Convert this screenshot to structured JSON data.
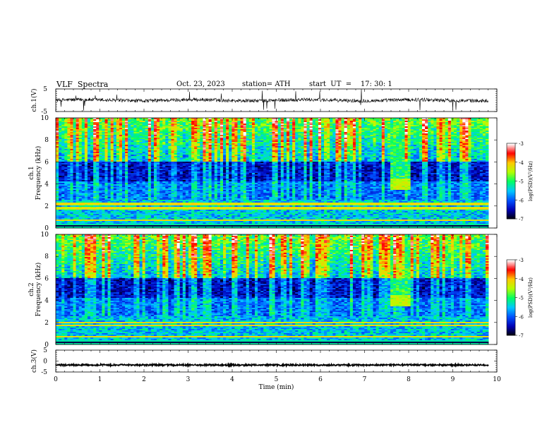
{
  "header": {
    "title": "VLF  Spectra",
    "date": "Oct. 23, 2023",
    "station": "station= ATH",
    "start": "start  UT  =    17: 30: 1"
  },
  "chart_data": [
    {
      "type": "line",
      "name": "ch1-waveform",
      "ylabel": "ch.1(V)",
      "ylim": [
        -5,
        5
      ],
      "yticks": [
        "5",
        "-5"
      ],
      "xlim": [
        0,
        10
      ],
      "mean_value": 0,
      "line_color": "#000000"
    },
    {
      "type": "heatmap",
      "name": "ch1-spectrogram",
      "ylabel": "ch.1\nFrequency  (kHz)",
      "ylim": [
        0,
        10
      ],
      "yticks": [
        "0",
        "2",
        "4",
        "6",
        "8",
        "10"
      ],
      "xlim": [
        0,
        10
      ],
      "bands": [
        {
          "freq_khz": 2.2,
          "label": "narrowband"
        },
        {
          "freq_khz": 1.8,
          "label": "narrowband"
        },
        {
          "freq_khz": 0.7,
          "label": "narrowband"
        }
      ],
      "burst": {
        "t_start_min": 7.6,
        "t_end_min": 8.05,
        "f_low_khz": 3.5,
        "f_high_khz": 4.5
      },
      "colorbar": {
        "label": "log(PSD)(V²/Hz)",
        "ticks": [
          "-3",
          "-4",
          "-5",
          "-6",
          "-7"
        ],
        "range": [
          -7,
          -3
        ]
      }
    },
    {
      "type": "heatmap",
      "name": "ch2-spectrogram",
      "ylabel": "ch.2\nFrequency  (kHz)",
      "ylim": [
        0,
        10
      ],
      "yticks": [
        "0",
        "2",
        "4",
        "6",
        "8",
        "10"
      ],
      "xlim": [
        0,
        10
      ],
      "bands": [
        {
          "freq_khz": 2.0,
          "label": "narrowband"
        },
        {
          "freq_khz": 1.7,
          "label": "narrowband"
        },
        {
          "freq_khz": 0.7,
          "label": "narrowband"
        }
      ],
      "burst": {
        "t_start_min": 7.6,
        "t_end_min": 8.05,
        "f_low_khz": 3.5,
        "f_high_khz": 4.5
      },
      "colorbar": {
        "label": "log(PSD)(V²/Hz)",
        "ticks": [
          "-3",
          "-4",
          "-5",
          "-6",
          "-7"
        ],
        "range": [
          -7,
          -3
        ]
      }
    },
    {
      "type": "line",
      "name": "ch3-waveform",
      "ylabel": "ch.3(V)",
      "ylim": [
        -5,
        5
      ],
      "yticks": [
        "5",
        "0",
        "-5"
      ],
      "xlim": [
        0,
        10
      ],
      "mean_value": -1.8,
      "xlabel": "Time  (min)",
      "xticks": [
        "0",
        "1",
        "2",
        "3",
        "4",
        "5",
        "6",
        "7",
        "8",
        "9",
        "10"
      ],
      "line_color": "#000000"
    }
  ],
  "colors": {
    "colormap": [
      "#000000",
      "#0000b4",
      "#0050ff",
      "#00c8ff",
      "#00ff64",
      "#b4ff00",
      "#ffc800",
      "#ff0000",
      "#ffffff"
    ]
  }
}
